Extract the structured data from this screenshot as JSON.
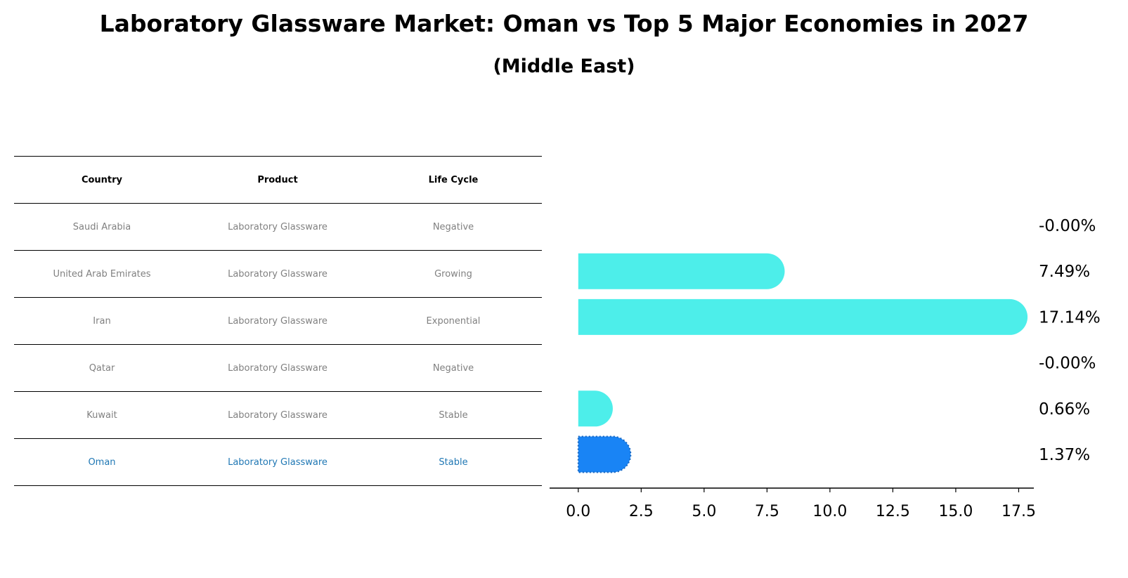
{
  "title": "Laboratory Glassware Market: Oman vs Top 5 Major Economies in 2027",
  "subtitle": "(Middle East)",
  "colors": {
    "bar": "#4deeea",
    "highlight": "#1984f5",
    "highlight_text": "#1f77b4",
    "muted_text": "#808080"
  },
  "table": {
    "headers": [
      "Country",
      "Product",
      "Life Cycle"
    ],
    "rows": [
      [
        "Saudi Arabia",
        "Laboratory Glassware",
        "Negative"
      ],
      [
        "United Arab Emirates",
        "Laboratory Glassware",
        "Growing"
      ],
      [
        "Iran",
        "Laboratory Glassware",
        "Exponential"
      ],
      [
        "Qatar",
        "Laboratory Glassware",
        "Negative"
      ],
      [
        "Kuwait",
        "Laboratory Glassware",
        "Stable"
      ],
      [
        "Oman",
        "Laboratory Glassware",
        "Stable"
      ]
    ],
    "highlight_row": 5
  },
  "chart_data": {
    "type": "bar",
    "orientation": "horizontal",
    "title": "Laboratory Glassware Market: Oman vs Top 5 Major Economies in 2027",
    "subtitle": "(Middle East)",
    "categories": [
      "Saudi Arabia",
      "United Arab Emirates",
      "Iran",
      "Qatar",
      "Kuwait",
      "Oman"
    ],
    "values": [
      -0.0,
      7.49,
      17.14,
      -0.0,
      0.66,
      1.37
    ],
    "labels": [
      "-0.00%",
      "7.49%",
      "17.14%",
      "-0.00%",
      "0.66%",
      "1.37%"
    ],
    "highlight": "Oman",
    "xlim": [
      -0.86,
      17.99
    ],
    "xticks": [
      0.0,
      2.5,
      5.0,
      7.5,
      10.0,
      12.5,
      15.0,
      17.5
    ],
    "xtick_labels": [
      "0.0",
      "2.5",
      "5.0",
      "7.5",
      "10.0",
      "12.5",
      "15.0",
      "17.5"
    ],
    "xlabel": "",
    "ylabel": "",
    "grid": false,
    "legend": "none"
  }
}
